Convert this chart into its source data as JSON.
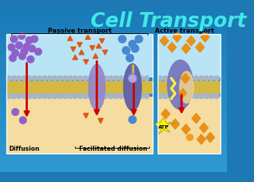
{
  "title": "Cell Transport",
  "title_color": "#40e8e8",
  "title_fontsize": 20,
  "passive_label": "Passive transport",
  "active_label": "Active transport",
  "diffusion_label": "Diffusion",
  "facilitated_label": "Facilitated diffusion",
  "cell_top_color": "#b8e4f5",
  "cell_bottom_color": "#f5dca0",
  "membrane_gray": "#a8b4c8",
  "membrane_yellow": "#d4b840",
  "protein_color": "#7870c0",
  "protein_color2": "#6868b8",
  "purple_ball": "#9060c8",
  "orange_triangle": "#e05818",
  "blue_ball": "#4888d0",
  "orange_diamond": "#e89018",
  "orange_ball": "#f0a020",
  "red_arrow": "#cc0000",
  "atp_color": "#f8f800",
  "bg_color1": "#1e78b4",
  "bg_color2": "#3098c8"
}
